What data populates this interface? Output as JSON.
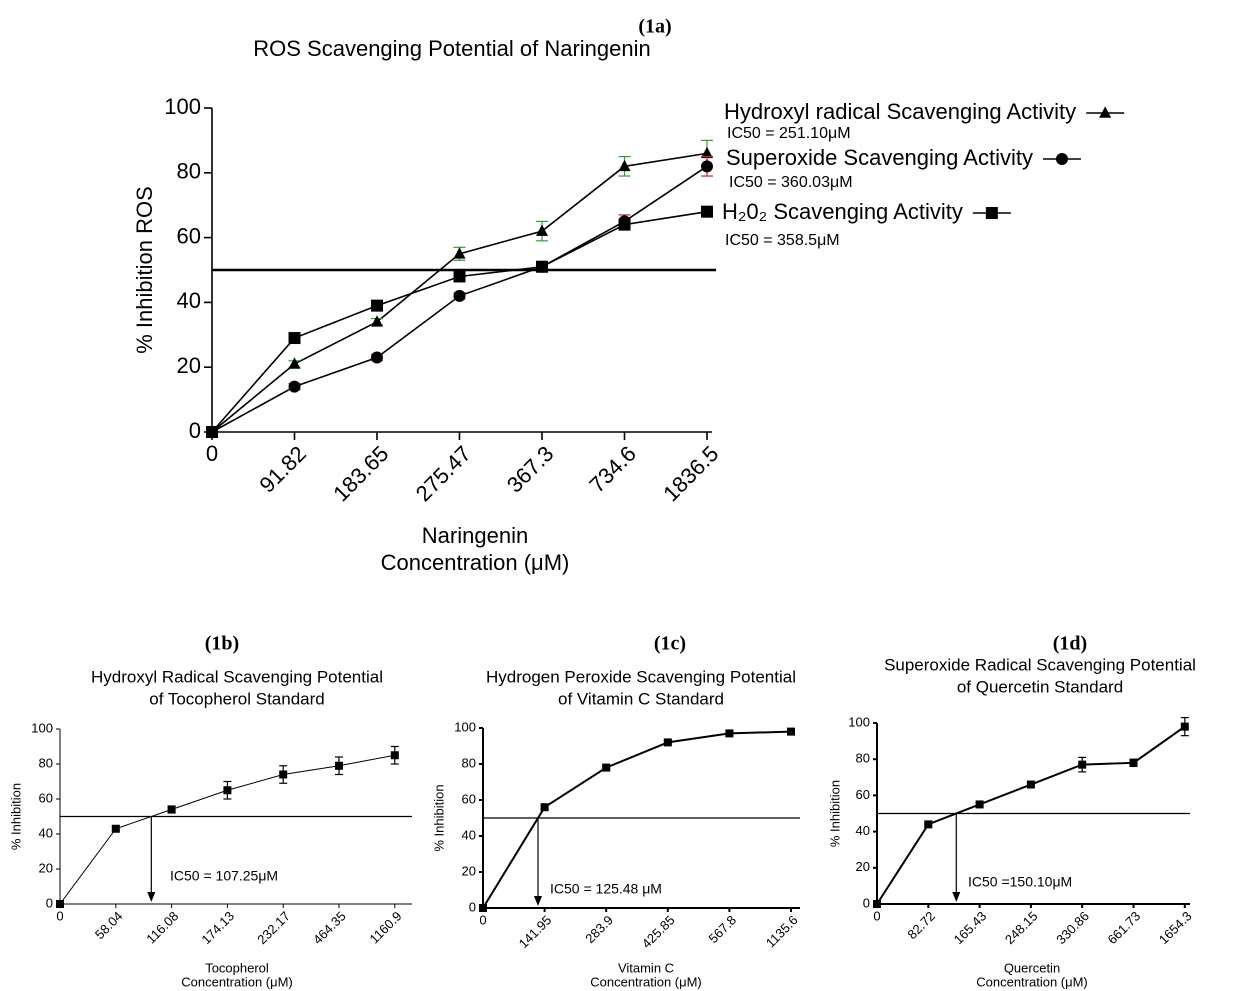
{
  "chart_data": [
    {
      "type": "line",
      "panel": "(1a)",
      "title": "ROS Scavenging Potential of Naringenin",
      "ylabel": "% Inhibition ROS",
      "xlabel": [
        "Naringenin",
        "Concentration (μM)"
      ],
      "categories": [
        "0",
        "91.82",
        "183.65",
        "275.47",
        "367.3",
        "734.6",
        "1836.5"
      ],
      "ylim": [
        0,
        100
      ],
      "yticks": [
        0,
        20,
        40,
        60,
        80,
        100
      ],
      "reference_line": 50,
      "series": [
        {
          "name": "Hydroxyl radical Scavenging Activity",
          "annotation": "IC50 = 251.10μM",
          "marker": "triangle",
          "color": "#000000",
          "error_color": "#2e9e3e",
          "values": [
            0,
            21,
            34,
            55,
            62,
            82,
            86
          ],
          "errors": [
            0,
            1,
            1,
            2,
            3,
            3,
            4
          ]
        },
        {
          "name": "Superoxide Scavenging Activity",
          "annotation": "IC50 = 360.03μM",
          "marker": "circle",
          "color": "#000000",
          "error_color": "#d0202a",
          "values": [
            0,
            14,
            23,
            42,
            51,
            65,
            82
          ],
          "errors": [
            0,
            1,
            1,
            1,
            1,
            2,
            3
          ]
        },
        {
          "name": "H₂0₂ Scavenging Activity",
          "annotation": "IC50 = 358.5μM",
          "marker": "square",
          "color": "#000000",
          "error_color": "#000000",
          "values": [
            0,
            29,
            39,
            48,
            51,
            64,
            68
          ],
          "errors": [
            0,
            1,
            1,
            1,
            1,
            1,
            1
          ]
        }
      ]
    },
    {
      "type": "line",
      "panel": "(1b)",
      "title": [
        "Hydroxyl Radical Scavenging Potential",
        "of Tocopherol Standard"
      ],
      "ylabel": "% Inhibition",
      "xlabel": [
        "Tocopherol",
        "Concentration (μM)"
      ],
      "categories": [
        "0",
        "58.04",
        "116.08",
        "174.13",
        "232.17",
        "464.35",
        "1160.9"
      ],
      "ylim": [
        0,
        100
      ],
      "yticks": [
        0,
        20,
        40,
        60,
        80,
        100
      ],
      "reference_line": 50,
      "annotation": "IC50 = 107.25μM",
      "series": [
        {
          "marker": "square",
          "color": "#000000",
          "values": [
            0,
            43,
            54,
            65,
            74,
            79,
            85
          ],
          "errors": [
            0,
            1,
            2,
            5,
            5,
            5,
            5
          ]
        }
      ]
    },
    {
      "type": "line",
      "panel": "(1c)",
      "title": [
        "Hydrogen Peroxide Scavenging Potential",
        "of Vitamin C Standard"
      ],
      "ylabel": "% Inhibition",
      "xlabel": [
        "Vitamin C",
        "Concentration (μM)"
      ],
      "categories": [
        "0",
        "141.95",
        "283.9",
        "425.85",
        "567.8",
        "1135.6"
      ],
      "ylim": [
        0,
        100
      ],
      "yticks": [
        0,
        20,
        40,
        60,
        80,
        100
      ],
      "reference_line": 50,
      "annotation": "IC50 = 125.48 μM",
      "series": [
        {
          "marker": "square",
          "color": "#000000",
          "values": [
            0,
            56,
            78,
            92,
            97,
            98
          ],
          "errors": [
            0,
            1,
            1,
            1,
            1,
            1
          ]
        }
      ]
    },
    {
      "type": "line",
      "panel": "(1d)",
      "title": [
        "Superoxide Radical Scavenging Potential",
        "of Quercetin Standard"
      ],
      "ylabel": "% Inhibition",
      "xlabel": [
        "Quercetin",
        "Concentration (μM)"
      ],
      "categories": [
        "0",
        "82.72",
        "165.43",
        "248.15",
        "330.86",
        "661.73",
        "1654.3"
      ],
      "ylim": [
        0,
        100
      ],
      "yticks": [
        0,
        20,
        40,
        60,
        80,
        100
      ],
      "reference_line": 50,
      "annotation": "IC50 =150.10μM",
      "series": [
        {
          "marker": "square",
          "color": "#000000",
          "values": [
            0,
            44,
            55,
            66,
            77,
            78,
            98
          ],
          "errors": [
            0,
            1,
            1,
            1,
            4,
            2,
            5
          ]
        }
      ]
    }
  ]
}
